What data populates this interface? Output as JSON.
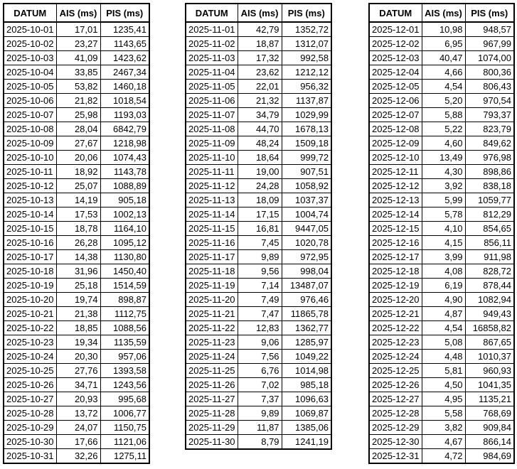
{
  "tables": [
    {
      "headers": [
        "DATUM",
        "AIS (ms)",
        "PIS (ms)"
      ],
      "rows": [
        [
          "2025-10-01",
          "17,01",
          "1235,41"
        ],
        [
          "2025-10-02",
          "23,27",
          "1143,65"
        ],
        [
          "2025-10-03",
          "41,09",
          "1423,62"
        ],
        [
          "2025-10-04",
          "33,85",
          "2467,34"
        ],
        [
          "2025-10-05",
          "53,82",
          "1460,18"
        ],
        [
          "2025-10-06",
          "21,82",
          "1018,54"
        ],
        [
          "2025-10-07",
          "25,98",
          "1193,03"
        ],
        [
          "2025-10-08",
          "28,04",
          "6842,79"
        ],
        [
          "2025-10-09",
          "27,67",
          "1218,98"
        ],
        [
          "2025-10-10",
          "20,06",
          "1074,43"
        ],
        [
          "2025-10-11",
          "18,92",
          "1143,78"
        ],
        [
          "2025-10-12",
          "25,07",
          "1088,89"
        ],
        [
          "2025-10-13",
          "14,19",
          "905,18"
        ],
        [
          "2025-10-14",
          "17,53",
          "1002,13"
        ],
        [
          "2025-10-15",
          "18,78",
          "1164,10"
        ],
        [
          "2025-10-16",
          "26,28",
          "1095,12"
        ],
        [
          "2025-10-17",
          "14,38",
          "1130,80"
        ],
        [
          "2025-10-18",
          "31,96",
          "1450,40"
        ],
        [
          "2025-10-19",
          "25,18",
          "1514,59"
        ],
        [
          "2025-10-20",
          "19,74",
          "898,87"
        ],
        [
          "2025-10-21",
          "21,38",
          "1112,75"
        ],
        [
          "2025-10-22",
          "18,85",
          "1088,56"
        ],
        [
          "2025-10-23",
          "19,34",
          "1135,59"
        ],
        [
          "2025-10-24",
          "20,30",
          "957,06"
        ],
        [
          "2025-10-25",
          "27,76",
          "1393,58"
        ],
        [
          "2025-10-26",
          "34,71",
          "1243,56"
        ],
        [
          "2025-10-27",
          "20,93",
          "995,68"
        ],
        [
          "2025-10-28",
          "13,72",
          "1006,77"
        ],
        [
          "2025-10-29",
          "24,07",
          "1150,75"
        ],
        [
          "2025-10-30",
          "17,66",
          "1121,06"
        ],
        [
          "2025-10-31",
          "32,26",
          "1275,11"
        ]
      ]
    },
    {
      "headers": [
        "DATUM",
        "AIS (ms)",
        "PIS (ms)"
      ],
      "rows": [
        [
          "2025-11-01",
          "42,79",
          "1352,72"
        ],
        [
          "2025-11-02",
          "18,87",
          "1312,07"
        ],
        [
          "2025-11-03",
          "17,32",
          "992,58"
        ],
        [
          "2025-11-04",
          "23,62",
          "1212,12"
        ],
        [
          "2025-11-05",
          "22,01",
          "956,32"
        ],
        [
          "2025-11-06",
          "21,32",
          "1137,87"
        ],
        [
          "2025-11-07",
          "34,79",
          "1029,99"
        ],
        [
          "2025-11-08",
          "44,70",
          "1678,13"
        ],
        [
          "2025-11-09",
          "48,24",
          "1509,18"
        ],
        [
          "2025-11-10",
          "18,64",
          "999,72"
        ],
        [
          "2025-11-11",
          "19,00",
          "907,51"
        ],
        [
          "2025-11-12",
          "24,28",
          "1058,92"
        ],
        [
          "2025-11-13",
          "18,09",
          "1037,37"
        ],
        [
          "2025-11-14",
          "17,15",
          "1004,74"
        ],
        [
          "2025-11-15",
          "16,81",
          "9447,05"
        ],
        [
          "2025-11-16",
          "7,45",
          "1020,78"
        ],
        [
          "2025-11-17",
          "9,89",
          "972,95"
        ],
        [
          "2025-11-18",
          "9,56",
          "998,04"
        ],
        [
          "2025-11-19",
          "7,14",
          "13487,07"
        ],
        [
          "2025-11-20",
          "7,49",
          "976,46"
        ],
        [
          "2025-11-21",
          "7,47",
          "11865,78"
        ],
        [
          "2025-11-22",
          "12,83",
          "1362,77"
        ],
        [
          "2025-11-23",
          "9,06",
          "1285,97"
        ],
        [
          "2025-11-24",
          "7,56",
          "1049,22"
        ],
        [
          "2025-11-25",
          "6,76",
          "1014,98"
        ],
        [
          "2025-11-26",
          "7,02",
          "985,18"
        ],
        [
          "2025-11-27",
          "7,37",
          "1096,63"
        ],
        [
          "2025-11-28",
          "9,89",
          "1069,87"
        ],
        [
          "2025-11-29",
          "11,87",
          "1385,06"
        ],
        [
          "2025-11-30",
          "8,79",
          "1241,19"
        ]
      ]
    },
    {
      "headers": [
        "DATUM",
        "AIS (ms)",
        "PIS (ms)"
      ],
      "rows": [
        [
          "2025-12-01",
          "10,98",
          "948,57"
        ],
        [
          "2025-12-02",
          "6,95",
          "967,99"
        ],
        [
          "2025-12-03",
          "40,47",
          "1074,00"
        ],
        [
          "2025-12-04",
          "4,66",
          "800,36"
        ],
        [
          "2025-12-05",
          "4,54",
          "806,43"
        ],
        [
          "2025-12-06",
          "5,20",
          "970,54"
        ],
        [
          "2025-12-07",
          "5,88",
          "793,37"
        ],
        [
          "2025-12-08",
          "5,22",
          "823,79"
        ],
        [
          "2025-12-09",
          "4,60",
          "849,62"
        ],
        [
          "2025-12-10",
          "13,49",
          "976,98"
        ],
        [
          "2025-12-11",
          "4,30",
          "898,86"
        ],
        [
          "2025-12-12",
          "3,92",
          "838,18"
        ],
        [
          "2025-12-13",
          "5,99",
          "1059,77"
        ],
        [
          "2025-12-14",
          "5,78",
          "812,29"
        ],
        [
          "2025-12-15",
          "4,10",
          "854,65"
        ],
        [
          "2025-12-16",
          "4,15",
          "856,11"
        ],
        [
          "2025-12-17",
          "3,99",
          "911,98"
        ],
        [
          "2025-12-18",
          "4,08",
          "828,72"
        ],
        [
          "2025-12-19",
          "6,19",
          "878,44"
        ],
        [
          "2025-12-20",
          "4,90",
          "1082,94"
        ],
        [
          "2025-12-21",
          "4,87",
          "949,43"
        ],
        [
          "2025-12-22",
          "4,54",
          "16858,82"
        ],
        [
          "2025-12-23",
          "5,08",
          "867,65"
        ],
        [
          "2025-12-24",
          "4,48",
          "1010,37"
        ],
        [
          "2025-12-25",
          "5,81",
          "960,93"
        ],
        [
          "2025-12-26",
          "4,50",
          "1041,35"
        ],
        [
          "2025-12-27",
          "4,95",
          "1135,21"
        ],
        [
          "2025-12-28",
          "5,58",
          "768,69"
        ],
        [
          "2025-12-29",
          "3,82",
          "909,84"
        ],
        [
          "2025-12-30",
          "4,67",
          "866,14"
        ],
        [
          "2025-12-31",
          "4,72",
          "984,69"
        ]
      ]
    }
  ]
}
